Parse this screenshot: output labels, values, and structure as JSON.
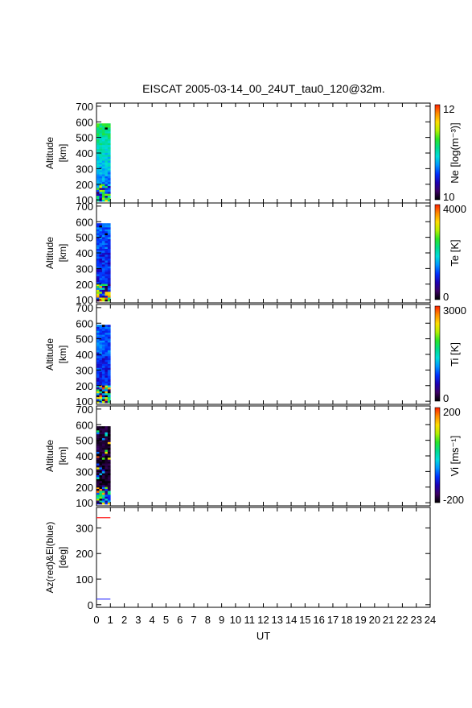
{
  "title": "EISCAT 2005-03-14_00_24UT_tau0_120@32m.",
  "chart_data": [
    {
      "type": "heatmap",
      "ylabel": "Altitude",
      "yunit": "[km]",
      "x": {
        "label": "UT",
        "range": [
          0,
          24
        ]
      },
      "y": {
        "range": [
          80,
          720
        ],
        "ticks": [
          100,
          200,
          300,
          400,
          500,
          600,
          700
        ]
      },
      "data_extent": {
        "ut": [
          0,
          1
        ],
        "altitude_km": [
          90,
          590
        ]
      },
      "colorbar": {
        "label": "Ne [log(m⁻³)]",
        "min_label": "10",
        "max_label": "12",
        "min": 10,
        "max": 12
      }
    },
    {
      "type": "heatmap",
      "ylabel": "Altitude",
      "yunit": "[km]",
      "x": {
        "label": "UT",
        "range": [
          0,
          24
        ]
      },
      "y": {
        "range": [
          80,
          720
        ],
        "ticks": [
          100,
          200,
          300,
          400,
          500,
          600,
          700
        ]
      },
      "data_extent": {
        "ut": [
          0,
          1
        ],
        "altitude_km": [
          90,
          590
        ]
      },
      "colorbar": {
        "label": "Te [K]",
        "min_label": "0",
        "max_label": "4000",
        "min": 0,
        "max": 4000
      }
    },
    {
      "type": "heatmap",
      "ylabel": "Altitude",
      "yunit": "[km]",
      "x": {
        "label": "UT",
        "range": [
          0,
          24
        ]
      },
      "y": {
        "range": [
          80,
          720
        ],
        "ticks": [
          100,
          200,
          300,
          400,
          500,
          600,
          700
        ]
      },
      "data_extent": {
        "ut": [
          0,
          1
        ],
        "altitude_km": [
          90,
          590
        ]
      },
      "colorbar": {
        "label": "Ti [K]",
        "min_label": "0",
        "max_label": "3000",
        "min": 0,
        "max": 3000
      }
    },
    {
      "type": "heatmap",
      "ylabel": "Altitude",
      "yunit": "[km]",
      "x": {
        "label": "UT",
        "range": [
          0,
          24
        ]
      },
      "y": {
        "range": [
          80,
          720
        ],
        "ticks": [
          100,
          200,
          300,
          400,
          500,
          600,
          700
        ]
      },
      "data_extent": {
        "ut": [
          0,
          1
        ],
        "altitude_km": [
          90,
          590
        ]
      },
      "colorbar": {
        "label": "Vi [ms⁻¹]",
        "min_label": "-200",
        "max_label": "200",
        "min": -200,
        "max": 200
      }
    },
    {
      "type": "line",
      "ylabel": "Az(red)&El(blue)",
      "yunit": "[deg]",
      "x": {
        "label": "UT",
        "range": [
          0,
          24
        ]
      },
      "y": {
        "range": [
          -10,
          380
        ],
        "ticks": [
          0,
          100,
          200,
          300
        ]
      },
      "series": [
        {
          "color": "#ff2020",
          "x": [
            0,
            1
          ],
          "y": [
            340,
            340
          ]
        },
        {
          "color": "#3030ff",
          "x": [
            0,
            1
          ],
          "y": [
            22,
            22
          ]
        }
      ]
    }
  ],
  "xaxis": {
    "label": "UT",
    "ticks": [
      "0",
      "1",
      "2",
      "3",
      "4",
      "5",
      "6",
      "7",
      "8",
      "9",
      "10",
      "11",
      "12",
      "13",
      "14",
      "15",
      "16",
      "17",
      "18",
      "19",
      "20",
      "21",
      "22",
      "23",
      "24"
    ]
  },
  "colors": {
    "rainbow": [
      "#000000",
      "#3c0064",
      "#1e00b4",
      "#0032ff",
      "#0096ff",
      "#00dcdc",
      "#00dc8c",
      "#28e628",
      "#b4f000",
      "#ffdc00",
      "#ff8c00",
      "#ff2000"
    ]
  }
}
